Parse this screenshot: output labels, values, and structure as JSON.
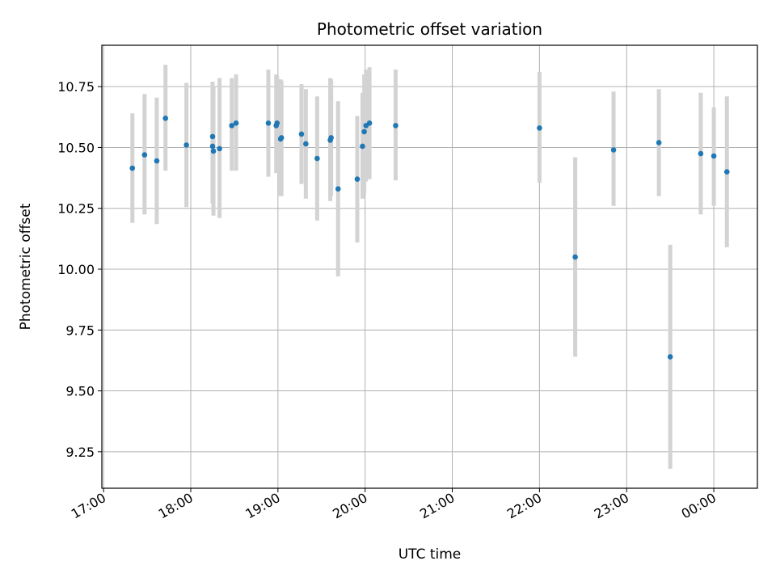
{
  "chart_data": {
    "type": "scatter",
    "title": "Photometric offset variation",
    "xlabel": "UTC time",
    "ylabel": "Photometric offset",
    "grid": true,
    "x_unit": "hours since 17:00 UTC",
    "xlim": [
      -0.02,
      7.5
    ],
    "ylim": [
      9.1,
      10.92
    ],
    "x_ticks": [
      0,
      1,
      2,
      3,
      4,
      5,
      6,
      7
    ],
    "x_tick_labels": [
      "17:00",
      "18:00",
      "19:00",
      "20:00",
      "21:00",
      "22:00",
      "23:00",
      "00:00"
    ],
    "y_ticks": [
      9.25,
      9.5,
      9.75,
      10.0,
      10.25,
      10.5,
      10.75
    ],
    "y_tick_labels": [
      "9.25",
      "9.50",
      "9.75",
      "10.00",
      "10.25",
      "10.50",
      "10.75"
    ],
    "series": [
      {
        "name": "offset",
        "color": "#1f77b4",
        "errorbar_color": "#d3d3d3",
        "points": [
          {
            "x": 0.33,
            "y": 10.415,
            "low": 10.19,
            "high": 10.64
          },
          {
            "x": 0.47,
            "y": 10.47,
            "low": 10.225,
            "high": 10.72
          },
          {
            "x": 0.61,
            "y": 10.445,
            "low": 10.185,
            "high": 10.705
          },
          {
            "x": 0.71,
            "y": 10.62,
            "low": 10.405,
            "high": 10.84
          },
          {
            "x": 0.95,
            "y": 10.51,
            "low": 10.255,
            "high": 10.765
          },
          {
            "x": 1.25,
            "y": 10.545,
            "low": 10.32,
            "high": 10.77
          },
          {
            "x": 1.25,
            "y": 10.505,
            "low": 10.27,
            "high": 10.74
          },
          {
            "x": 1.26,
            "y": 10.485,
            "low": 10.22,
            "high": 10.75
          },
          {
            "x": 1.33,
            "y": 10.495,
            "low": 10.21,
            "high": 10.785
          },
          {
            "x": 1.47,
            "y": 10.59,
            "low": 10.405,
            "high": 10.785
          },
          {
            "x": 1.52,
            "y": 10.6,
            "low": 10.405,
            "high": 10.8
          },
          {
            "x": 1.89,
            "y": 10.6,
            "low": 10.38,
            "high": 10.82
          },
          {
            "x": 1.98,
            "y": 10.59,
            "low": 10.395,
            "high": 10.8
          },
          {
            "x": 1.99,
            "y": 10.6,
            "low": 10.4,
            "high": 10.795
          },
          {
            "x": 2.03,
            "y": 10.535,
            "low": 10.3,
            "high": 10.78
          },
          {
            "x": 2.04,
            "y": 10.54,
            "low": 10.3,
            "high": 10.775
          },
          {
            "x": 2.27,
            "y": 10.555,
            "low": 10.35,
            "high": 10.76
          },
          {
            "x": 2.32,
            "y": 10.515,
            "low": 10.29,
            "high": 10.74
          },
          {
            "x": 2.45,
            "y": 10.455,
            "low": 10.2,
            "high": 10.71
          },
          {
            "x": 2.6,
            "y": 10.53,
            "low": 10.28,
            "high": 10.785
          },
          {
            "x": 2.61,
            "y": 10.54,
            "low": 10.3,
            "high": 10.78
          },
          {
            "x": 2.69,
            "y": 10.33,
            "low": 9.97,
            "high": 10.69
          },
          {
            "x": 2.91,
            "y": 10.37,
            "low": 10.11,
            "high": 10.63
          },
          {
            "x": 2.97,
            "y": 10.505,
            "low": 10.29,
            "high": 10.725
          },
          {
            "x": 2.99,
            "y": 10.565,
            "low": 10.31,
            "high": 10.8
          },
          {
            "x": 3.01,
            "y": 10.59,
            "low": 10.36,
            "high": 10.82
          },
          {
            "x": 3.05,
            "y": 10.6,
            "low": 10.37,
            "high": 10.83
          },
          {
            "x": 3.35,
            "y": 10.59,
            "low": 10.365,
            "high": 10.82
          },
          {
            "x": 5.0,
            "y": 10.58,
            "low": 10.355,
            "high": 10.81
          },
          {
            "x": 5.41,
            "y": 10.05,
            "low": 9.64,
            "high": 10.46
          },
          {
            "x": 5.85,
            "y": 10.49,
            "low": 10.26,
            "high": 10.73
          },
          {
            "x": 6.37,
            "y": 10.52,
            "low": 10.3,
            "high": 10.74
          },
          {
            "x": 6.5,
            "y": 9.64,
            "low": 9.18,
            "high": 10.1
          },
          {
            "x": 6.85,
            "y": 10.475,
            "low": 10.225,
            "high": 10.725
          },
          {
            "x": 7.0,
            "y": 10.465,
            "low": 10.26,
            "high": 10.665
          },
          {
            "x": 7.15,
            "y": 10.4,
            "low": 10.09,
            "high": 10.71
          }
        ]
      }
    ]
  }
}
